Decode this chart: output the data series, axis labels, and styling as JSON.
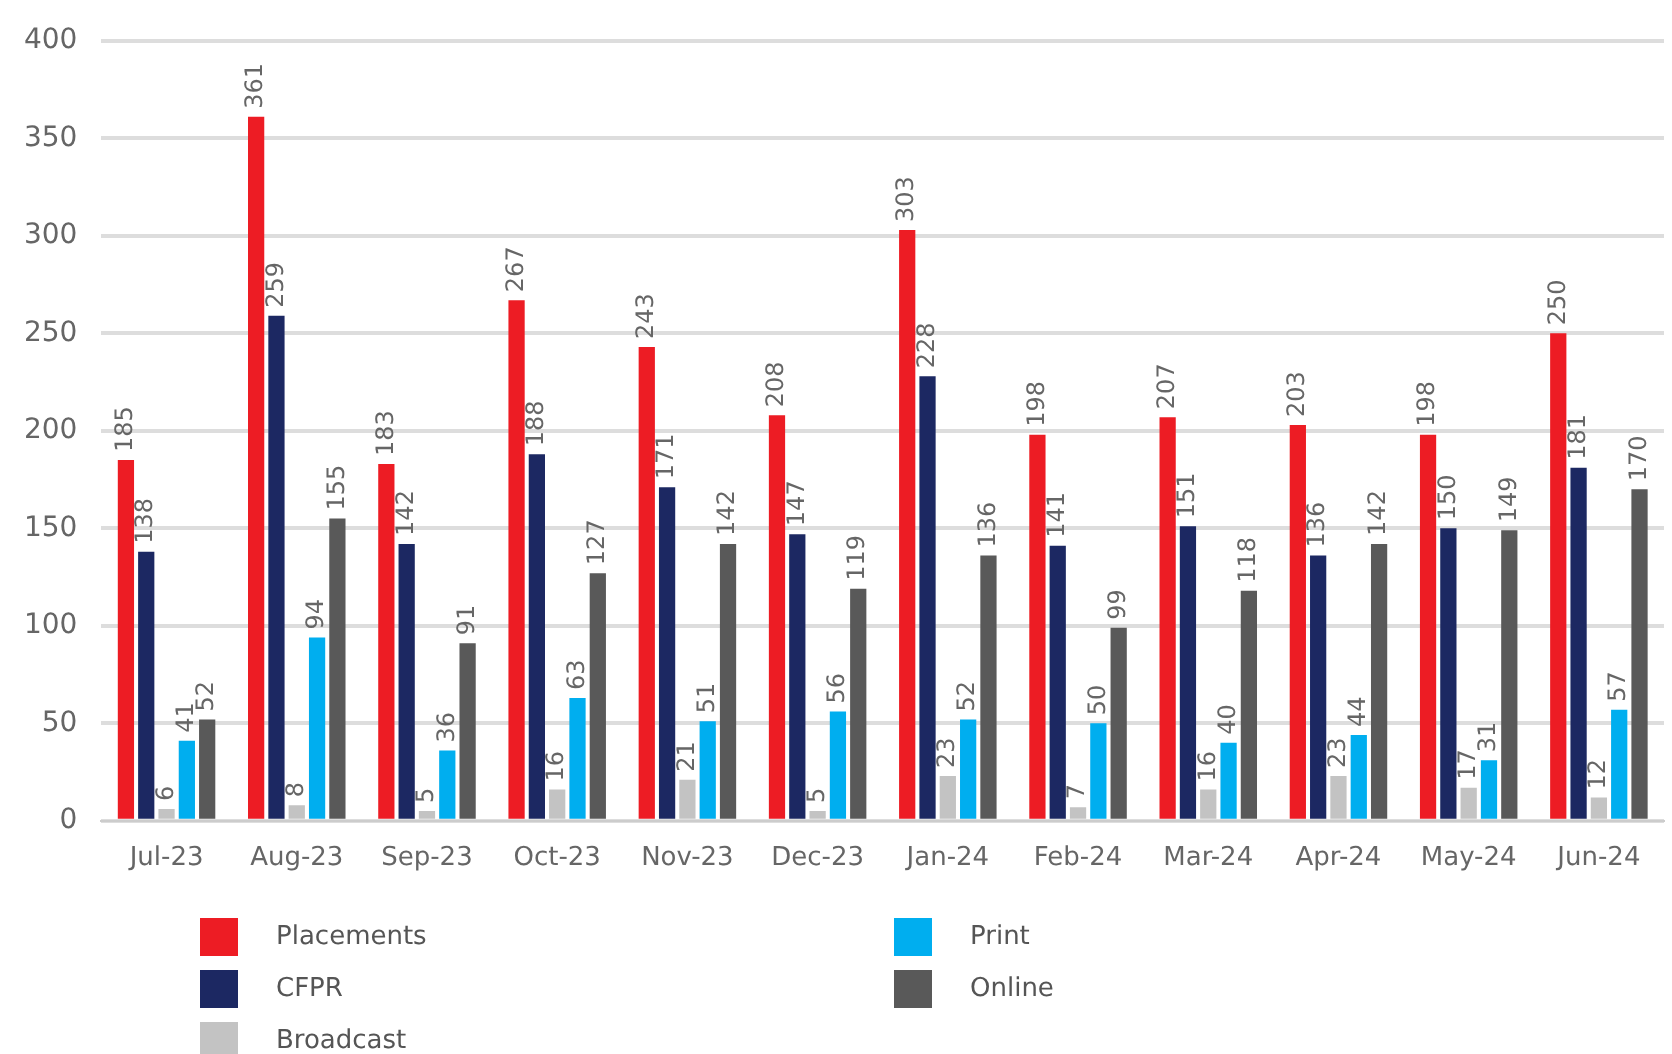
{
  "chart_data": {
    "type": "bar",
    "categories": [
      "Jul-23",
      "Aug-23",
      "Sep-23",
      "Oct-23",
      "Nov-23",
      "Dec-23",
      "Jan-24",
      "Feb-24",
      "Mar-24",
      "Apr-24",
      "May-24",
      "Jun-24"
    ],
    "series": [
      {
        "name": "Placements",
        "color": "#ed1c24",
        "values": [
          185,
          361,
          183,
          267,
          243,
          208,
          303,
          198,
          207,
          203,
          198,
          250
        ]
      },
      {
        "name": "CFPR",
        "color": "#1c2862",
        "values": [
          138,
          259,
          142,
          188,
          171,
          147,
          228,
          141,
          151,
          136,
          150,
          181
        ]
      },
      {
        "name": "Broadcast",
        "color": "#c3c3c3",
        "values": [
          6,
          8,
          5,
          16,
          21,
          5,
          23,
          7,
          16,
          23,
          17,
          12
        ]
      },
      {
        "name": "Print",
        "color": "#00aeef",
        "values": [
          41,
          94,
          36,
          63,
          51,
          56,
          52,
          50,
          40,
          44,
          31,
          57
        ]
      },
      {
        "name": "Online",
        "color": "#595959",
        "values": [
          52,
          155,
          91,
          127,
          142,
          119,
          136,
          99,
          118,
          142,
          149,
          170
        ]
      }
    ],
    "ylim": [
      0,
      400
    ],
    "yticks": [
      0,
      50,
      100,
      150,
      200,
      250,
      300,
      350,
      400
    ],
    "grid": "y",
    "legend": "bottom left",
    "data_labels": true
  }
}
